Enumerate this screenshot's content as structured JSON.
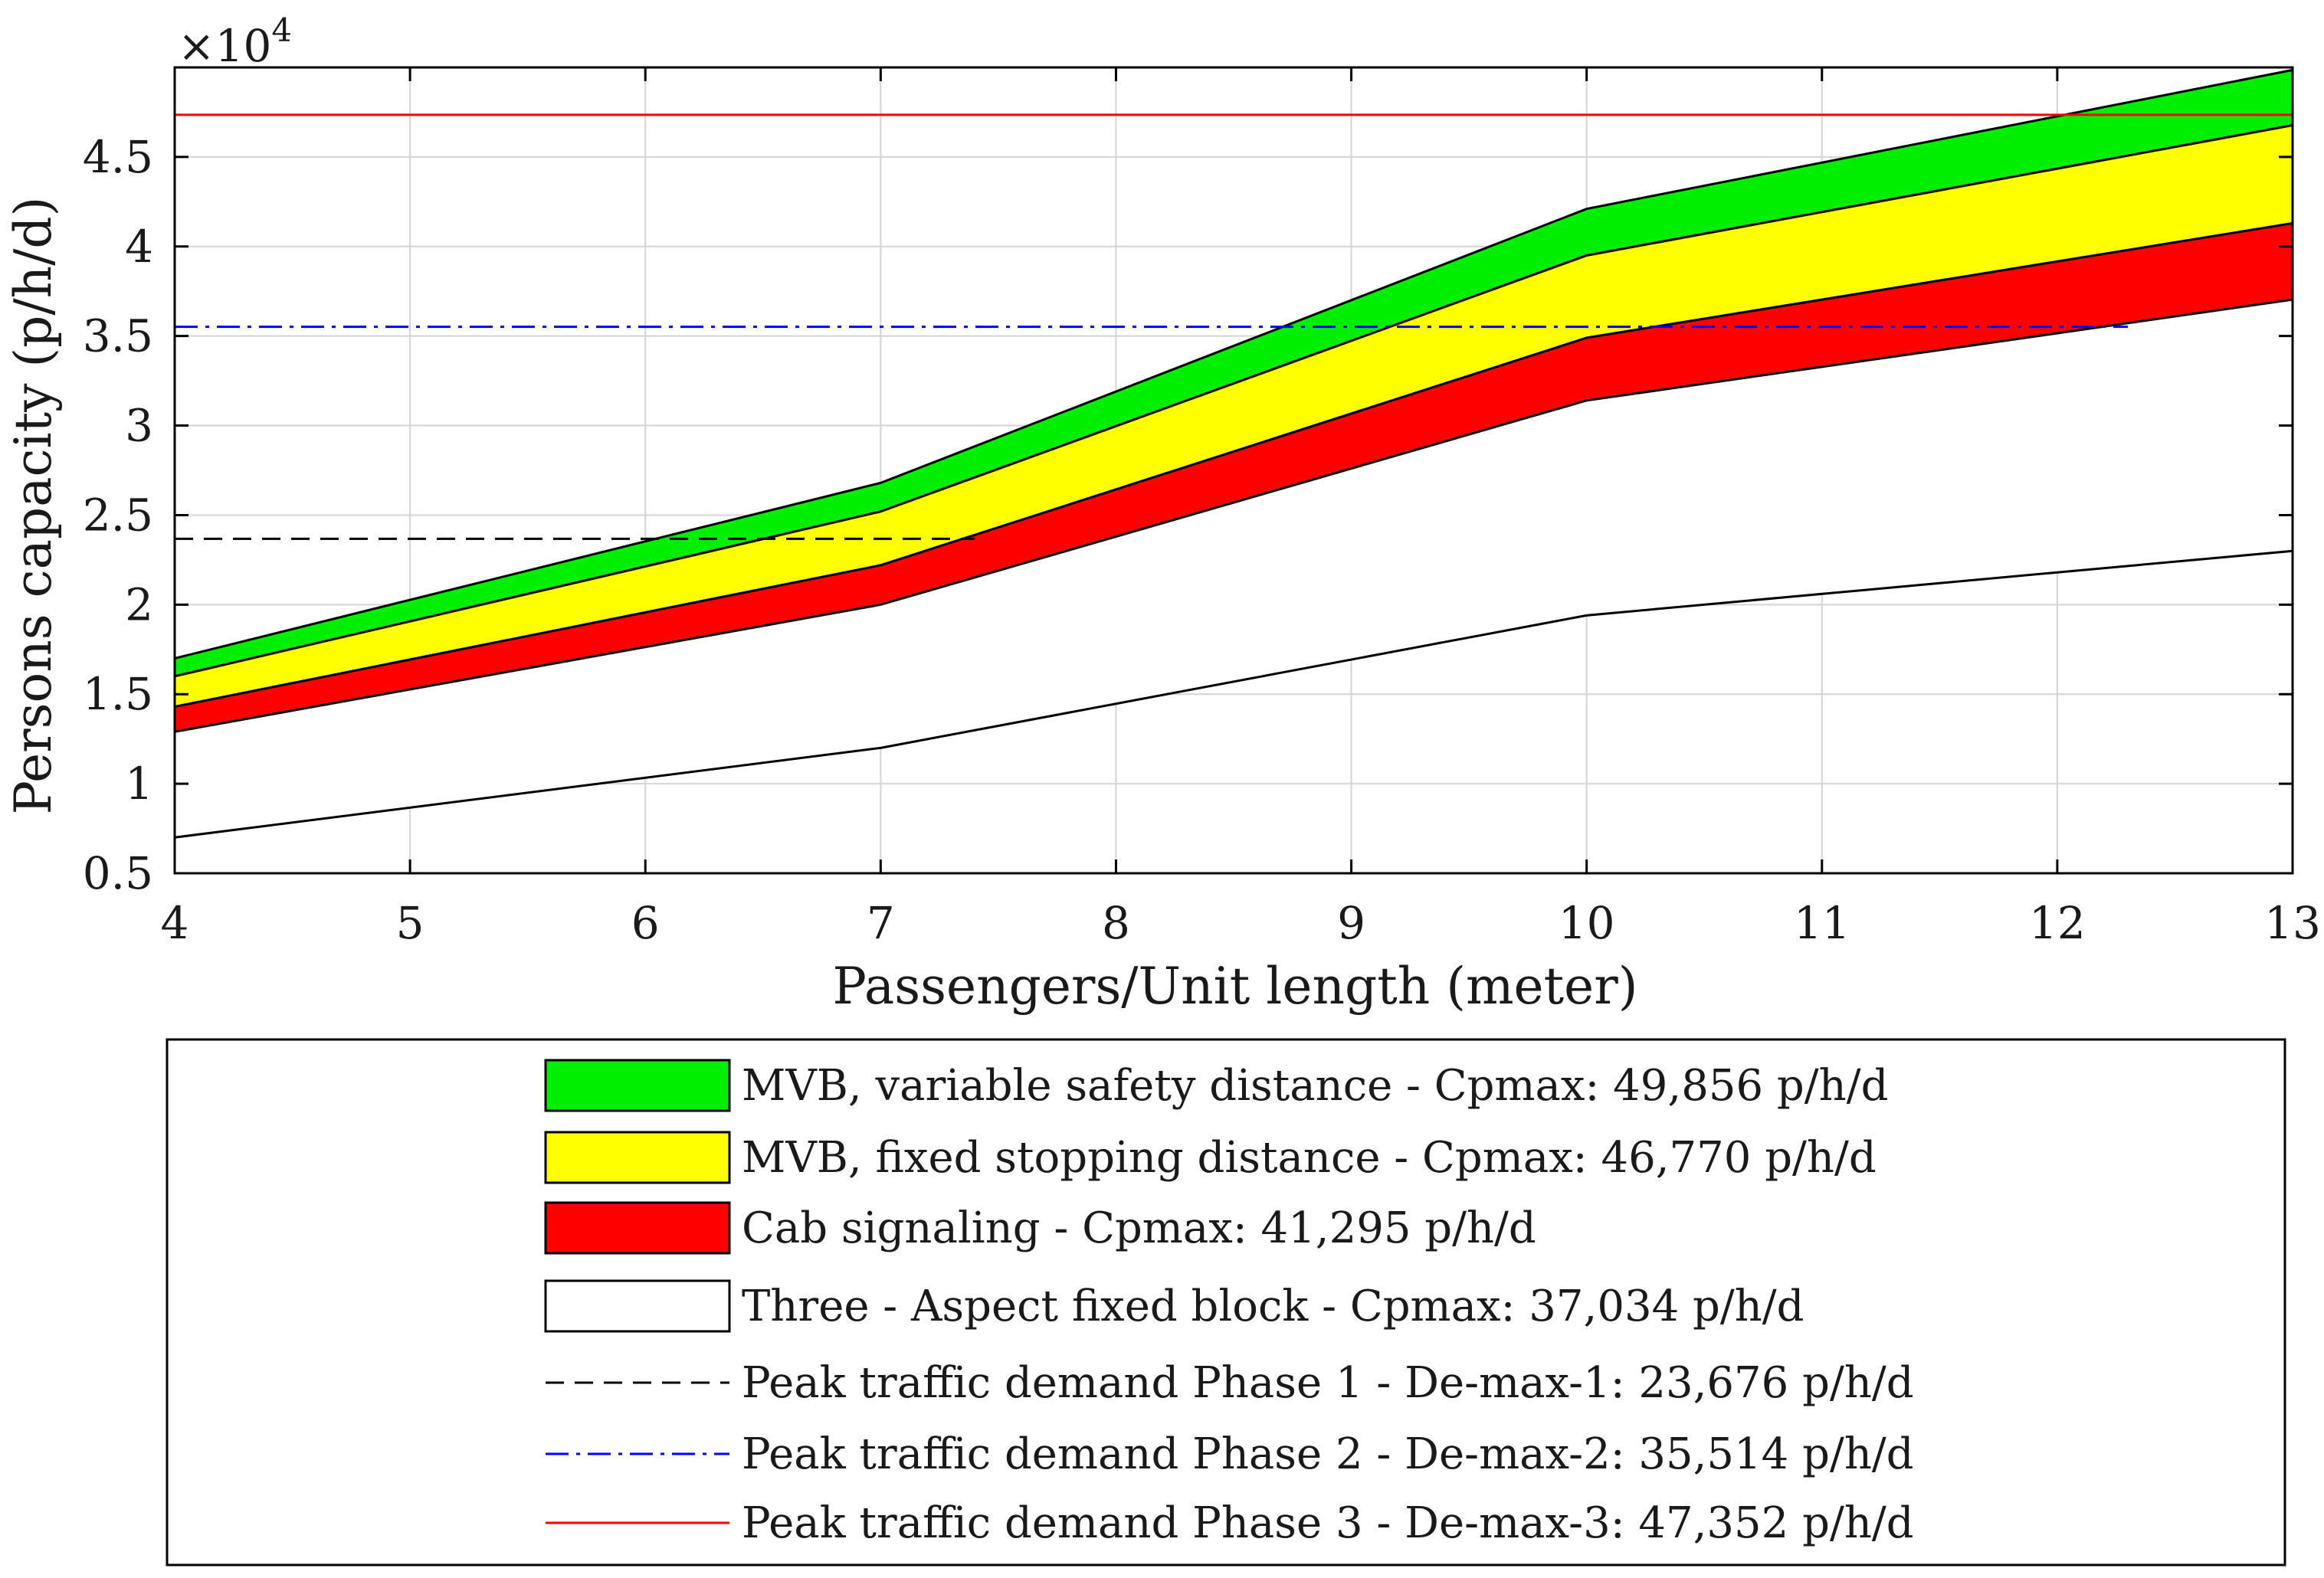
{
  "chart_data": {
    "type": "area",
    "xlabel": "Passengers/Unit length (meter)",
    "ylabel": "Persons capacity (p/h/d)",
    "y_exponent_label": "×10",
    "y_exponent_power": "4",
    "xlim": [
      4,
      13
    ],
    "ylim": [
      5000,
      50000
    ],
    "x_ticks": [
      4,
      5,
      6,
      7,
      8,
      9,
      10,
      11,
      12,
      13
    ],
    "y_ticks": [
      5000,
      10000,
      15000,
      20000,
      25000,
      30000,
      35000,
      40000,
      45000
    ],
    "y_tick_labels": [
      "0.5",
      "1",
      "1.5",
      "2",
      "2.5",
      "3",
      "3.5",
      "4",
      "4.5"
    ],
    "grid": true,
    "x": [
      4,
      7,
      10,
      13
    ],
    "bands": [
      {
        "name": "MVB, variable safety distance - Cpmax: 49,856 p/h/d",
        "color": "#00ee00",
        "upper": [
          17000,
          26800,
          42100,
          49856
        ],
        "lower": [
          16000,
          25200,
          39500,
          46770
        ]
      },
      {
        "name": "MVB, fixed stopping distance - Cpmax: 46,770 p/h/d",
        "color": "#ffff00",
        "upper": [
          16000,
          25200,
          39500,
          46770
        ],
        "lower": [
          14300,
          22200,
          34900,
          41295
        ]
      },
      {
        "name": "Cab signaling - Cpmax: 41,295 p/h/d",
        "color": "#ff0000",
        "upper": [
          14300,
          22200,
          34900,
          41295
        ],
        "lower": [
          12900,
          20000,
          31400,
          37034
        ]
      },
      {
        "name": "Three - Aspect fixed block - Cpmax: 37,034 p/h/d",
        "color": "#ffffff",
        "upper": [
          12900,
          20000,
          31400,
          37034
        ],
        "lower": [
          7000,
          12000,
          19400,
          23000
        ]
      }
    ],
    "hlines": [
      {
        "name": "Peak traffic demand Phase 1 - De-max-1: 23,676 p/h/d",
        "y": 23676,
        "color": "#000000",
        "style": "dashed",
        "x_end": 7.4
      },
      {
        "name": "Peak traffic demand Phase 2 - De-max-2: 35,514 p/h/d",
        "y": 35514,
        "color": "#0000ff",
        "style": "dashdot",
        "x_end": 12.3
      },
      {
        "name": "Peak traffic demand Phase 3 - De-max-3: 47,352 p/h/d",
        "y": 47352,
        "color": "#ff0000",
        "style": "solid",
        "x_end": 13
      }
    ],
    "legend_position": "below"
  }
}
